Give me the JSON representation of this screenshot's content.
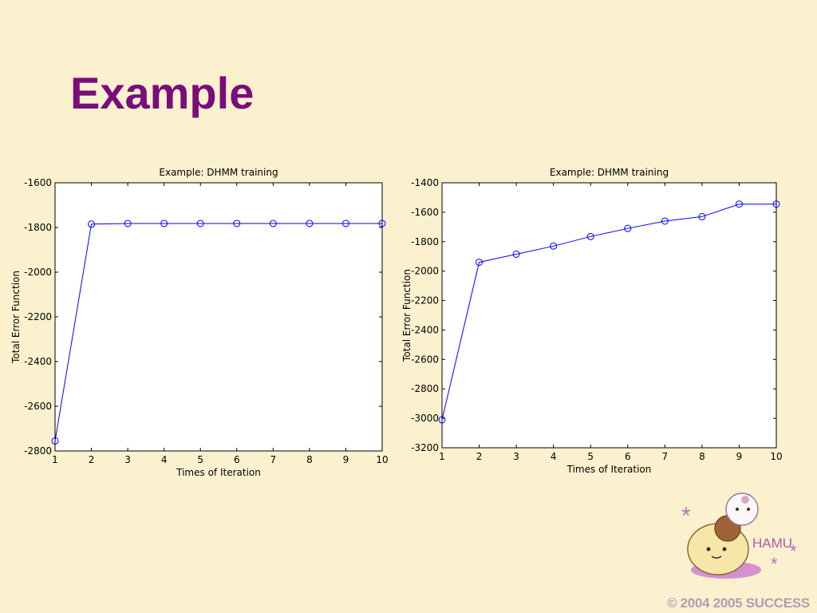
{
  "slide": {
    "title": "Example",
    "copyright": "© 2004 2005 SUCCESS",
    "logo_text": "HAMU"
  },
  "colors": {
    "background": "#fbf1cf",
    "title": "#7a0d7a",
    "series": "#0000ff",
    "copyright": "#b49cb4"
  },
  "chart_data": [
    {
      "type": "line",
      "title": "Example: DHMM training",
      "xlabel": "Times of Iteration",
      "ylabel": "Total Error Function",
      "xlim": [
        1,
        10
      ],
      "ylim": [
        -2800,
        -1600
      ],
      "xticks": [
        1,
        2,
        3,
        4,
        5,
        6,
        7,
        8,
        9,
        10
      ],
      "yticks": [
        -1600,
        -1800,
        -2000,
        -2200,
        -2400,
        -2600,
        -2800
      ],
      "grid": false,
      "marker": "circle",
      "series": [
        {
          "x": [
            1,
            2,
            3,
            4,
            5,
            6,
            7,
            8,
            9,
            10
          ],
          "y": [
            -2755,
            -1785,
            -1782,
            -1782,
            -1782,
            -1782,
            -1782,
            -1782,
            -1782,
            -1782
          ]
        }
      ]
    },
    {
      "type": "line",
      "title": "Example: DHMM training",
      "xlabel": "Times of Iteration",
      "ylabel": "Total Error Function",
      "xlim": [
        1,
        10
      ],
      "ylim": [
        -3200,
        -1400
      ],
      "xticks": [
        1,
        2,
        3,
        4,
        5,
        6,
        7,
        8,
        9,
        10
      ],
      "yticks": [
        -1400,
        -1600,
        -1800,
        -2000,
        -2200,
        -2400,
        -2600,
        -2800,
        -3000,
        -3200
      ],
      "grid": false,
      "marker": "circle",
      "series": [
        {
          "x": [
            1,
            2,
            3,
            4,
            5,
            6,
            7,
            8,
            9,
            10
          ],
          "y": [
            -3010,
            -1940,
            -1885,
            -1830,
            -1765,
            -1710,
            -1660,
            -1630,
            -1545,
            -1545
          ]
        }
      ]
    }
  ]
}
